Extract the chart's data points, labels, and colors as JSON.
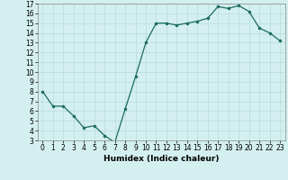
{
  "x": [
    0,
    1,
    2,
    3,
    4,
    5,
    6,
    7,
    8,
    9,
    10,
    11,
    12,
    13,
    14,
    15,
    16,
    17,
    18,
    19,
    20,
    21,
    22,
    23
  ],
  "y": [
    8.0,
    6.5,
    6.5,
    5.5,
    4.3,
    4.5,
    3.5,
    2.8,
    6.2,
    9.5,
    13.0,
    15.0,
    15.0,
    14.8,
    15.0,
    15.2,
    15.5,
    16.7,
    16.5,
    16.8,
    16.2,
    14.5,
    14.0,
    13.2
  ],
  "xlabel": "Humidex (Indice chaleur)",
  "ylim": [
    3,
    17
  ],
  "xlim": [
    -0.5,
    23.5
  ],
  "yticks": [
    3,
    4,
    5,
    6,
    7,
    8,
    9,
    10,
    11,
    12,
    13,
    14,
    15,
    16,
    17
  ],
  "xticks": [
    0,
    1,
    2,
    3,
    4,
    5,
    6,
    7,
    8,
    9,
    10,
    11,
    12,
    13,
    14,
    15,
    16,
    17,
    18,
    19,
    20,
    21,
    22,
    23
  ],
  "line_color": "#1a6b5e",
  "marker_color": "#1a6b5e",
  "bg_color": "#d4efef",
  "grid_color": "#b8dada",
  "text_color": "#000000",
  "tick_fontsize": 5.5,
  "xlabel_fontsize": 6.5
}
